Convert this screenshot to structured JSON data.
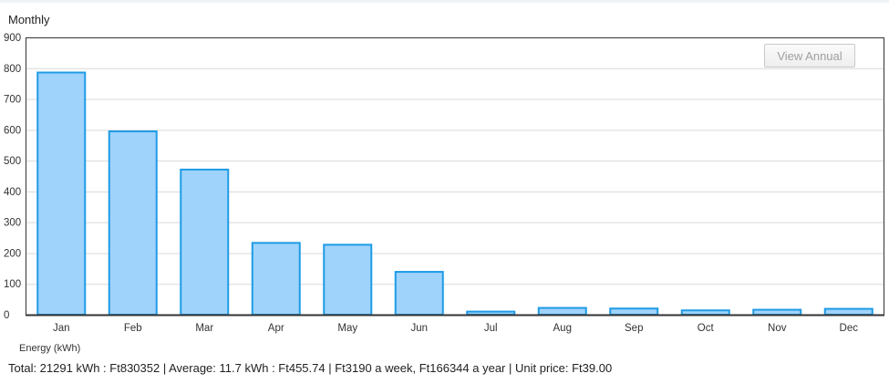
{
  "title": "Monthly",
  "view_button_label": "View Annual",
  "legend_label": "Energy (kWh)",
  "summary": "Total: 21291 kWh : Ft830352 | Average: 11.7 kWh : Ft455.74 | Ft3190 a week, Ft166344 a year | Unit price: Ft39.00",
  "colors": {
    "bar_fill": "#9fd3fb",
    "bar_stroke": "#1f9be6",
    "grid": "#d9d9d9",
    "axis": "#333333"
  },
  "chart_data": {
    "type": "bar",
    "title": "Monthly",
    "xlabel": "",
    "ylabel": "",
    "categories": [
      "Jan",
      "Feb",
      "Mar",
      "Apr",
      "May",
      "Jun",
      "Jul",
      "Aug",
      "Sep",
      "Oct",
      "Nov",
      "Dec"
    ],
    "series": [
      {
        "name": "Energy (kWh)",
        "values": [
          786,
          595,
          471,
          233,
          227,
          139,
          10,
          22,
          20,
          14,
          16,
          19
        ]
      }
    ],
    "ylim": [
      0,
      900
    ],
    "yticks": [
      0,
      100,
      200,
      300,
      400,
      500,
      600,
      700,
      800,
      900
    ],
    "grid": true
  }
}
